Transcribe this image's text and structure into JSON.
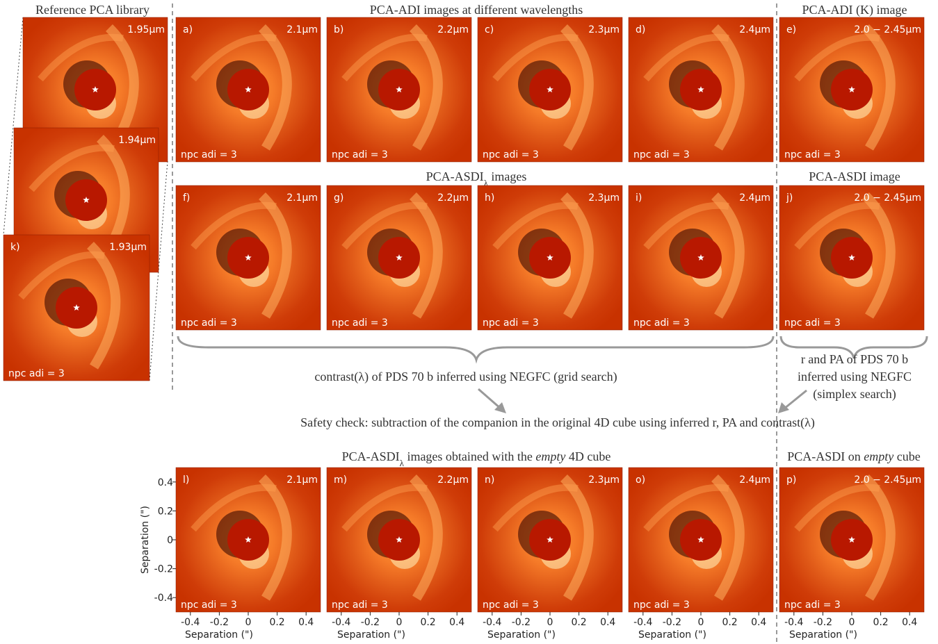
{
  "headings": {
    "library": "Reference PCA library",
    "adi": "PCA-ADI images at different wavelengths",
    "adi_k": "PCA-ADI (K) image",
    "asdi": {
      "parts": [
        "PCA-ASDI",
        "λ",
        " images"
      ]
    },
    "asdi_comb": "PCA-ASDI image",
    "empty": {
      "parts": [
        "PCA-ASDI",
        "λ",
        " images obtained with the ",
        "empty",
        " 4D cube"
      ]
    },
    "empty_comb": {
      "parts": [
        "PCA-ASDI on ",
        "empty",
        " cube"
      ]
    }
  },
  "library": [
    {
      "wavelength": "1.95μm"
    },
    {
      "wavelength": "1.94μm"
    },
    {
      "label": "k)",
      "wavelength": "1.93μm",
      "npc": "npc adi = 3"
    }
  ],
  "panels": [
    {
      "label": "a)",
      "wavelength": "2.1μm",
      "npc": "npc adi = 3"
    },
    {
      "label": "b)",
      "wavelength": "2.2μm",
      "npc": "npc adi = 3"
    },
    {
      "label": "c)",
      "wavelength": "2.3μm",
      "npc": "npc adi = 3"
    },
    {
      "label": "d)",
      "wavelength": "2.4μm",
      "npc": "npc adi = 3"
    },
    {
      "label": "e)",
      "wavelength": "2.0 − 2.45μm",
      "npc": "npc adi = 3"
    },
    {
      "label": "f)",
      "wavelength": "2.1μm",
      "npc": "npc adi = 3"
    },
    {
      "label": "g)",
      "wavelength": "2.2μm",
      "npc": "npc adi = 3"
    },
    {
      "label": "h)",
      "wavelength": "2.3μm",
      "npc": "npc adi = 3"
    },
    {
      "label": "i)",
      "wavelength": "2.4μm",
      "npc": "npc adi = 3"
    },
    {
      "label": "j)",
      "wavelength": "2.0 − 2.45μm",
      "npc": "npc adi = 3"
    },
    {
      "label": "l)",
      "wavelength": "2.1μm",
      "npc": "npc adi = 3"
    },
    {
      "label": "m)",
      "wavelength": "2.2μm",
      "npc": "npc adi = 3"
    },
    {
      "label": "n)",
      "wavelength": "2.3μm",
      "npc": "npc adi = 3"
    },
    {
      "label": "o)",
      "wavelength": "2.4μm",
      "npc": "npc adi = 3"
    },
    {
      "label": "p)",
      "wavelength": "2.0 − 2.45μm",
      "npc": "npc adi = 3"
    }
  ],
  "notes": {
    "grid": "contrast(λ) of PDS 70 b inferred using NEGFC (grid search)",
    "simplex": [
      "r and PA of PDS 70 b",
      "inferred using NEGFC",
      "(simplex search)"
    ],
    "safety": "Safety check: subtraction of the companion in the original 4D cube using inferred r, PA and contrast(λ)"
  },
  "axes": {
    "xlabel": "Separation (\")",
    "ylabel": "Separation (\")",
    "xlim": [
      -0.5,
      0.5
    ],
    "ylim": [
      -0.5,
      0.5
    ],
    "xticks": [
      -0.4,
      -0.2,
      0,
      0.2,
      0.4
    ],
    "yticks": [
      0.4,
      0.2,
      0,
      -0.2,
      -0.4
    ]
  }
}
